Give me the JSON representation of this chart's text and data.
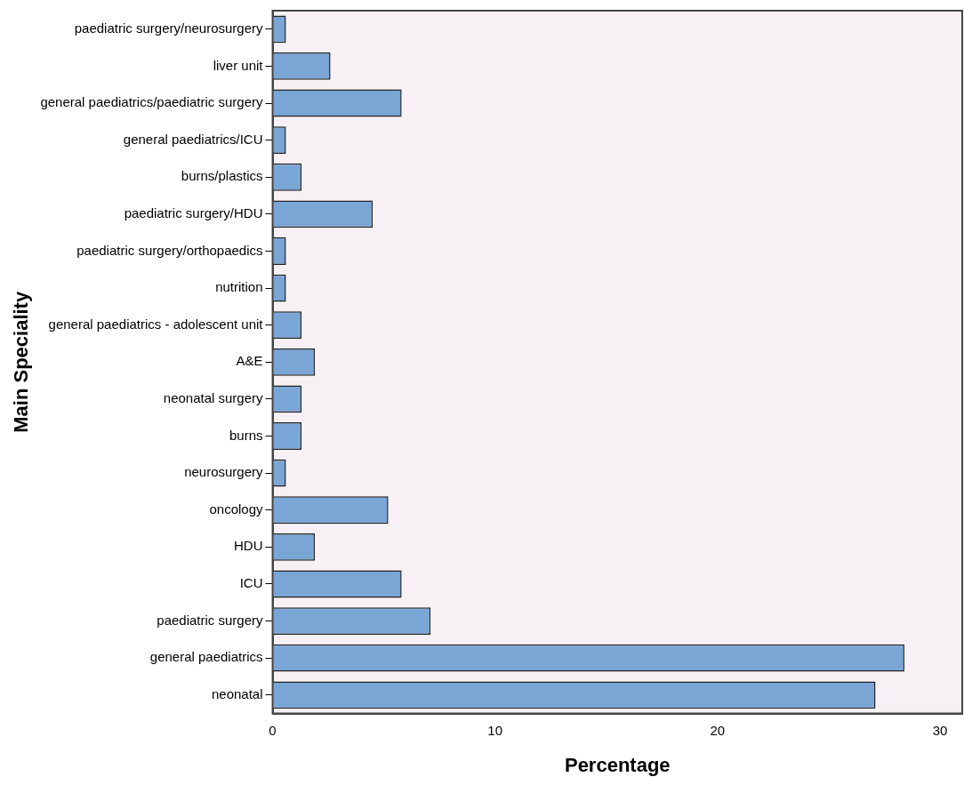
{
  "chart_data": {
    "type": "bar",
    "orientation": "horizontal",
    "xlabel": "Percentage",
    "ylabel": "Main Speciality",
    "categories": [
      "paediatric surgery/neurosurgery",
      "liver unit",
      "general paediatrics/paediatric surgery",
      "general paediatrics/ICU",
      "burns/plastics",
      "paediatric surgery/HDU",
      "paediatric surgery/orthopaedics",
      "nutrition",
      "general paediatrics - adolescent unit",
      "A&E",
      "neonatal surgery",
      "burns",
      "neurosurgery",
      "oncology",
      "HDU",
      "ICU",
      "paediatric surgery",
      "general paediatrics",
      "neonatal"
    ],
    "values": [
      0.6,
      2.6,
      5.8,
      0.6,
      1.3,
      4.5,
      0.6,
      0.6,
      1.3,
      1.9,
      1.3,
      1.3,
      0.6,
      5.2,
      1.9,
      5.8,
      7.1,
      28.4,
      27.1
    ],
    "color": "#7aa6d6",
    "xlim": [
      0,
      31
    ],
    "xticks": [
      0,
      10,
      20,
      30
    ],
    "grid": false,
    "legend": false
  }
}
